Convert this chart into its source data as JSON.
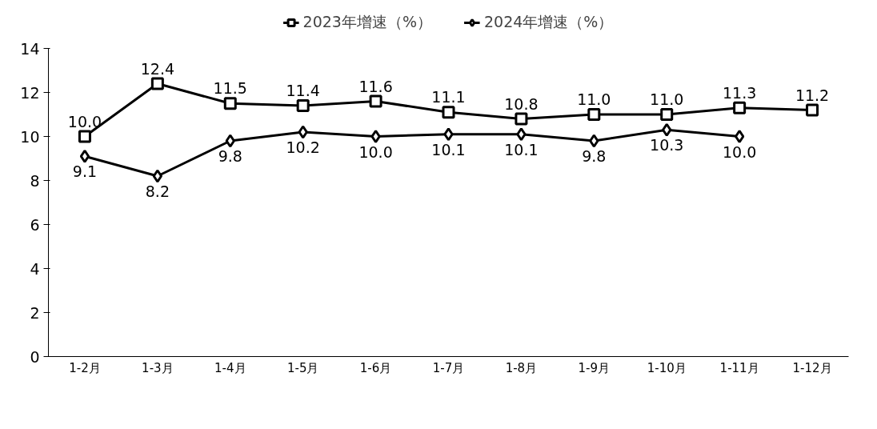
{
  "chart_data": {
    "type": "line",
    "categories": [
      "1-2月",
      "1-3月",
      "1-4月",
      "1-5月",
      "1-6月",
      "1-7月",
      "1-8月",
      "1-9月",
      "1-10月",
      "1-11月",
      "1-12月"
    ],
    "series": [
      {
        "name": "2023年增速（%）",
        "color": "#000000",
        "marker": "square",
        "values": [
          10.0,
          12.4,
          11.5,
          11.4,
          11.6,
          11.1,
          10.8,
          11.0,
          11.0,
          11.3,
          11.2
        ],
        "value_labels": [
          "10.0",
          "12.4",
          "11.5",
          "11.4",
          "11.6",
          "11.1",
          "10.8",
          "11.0",
          "11.0",
          "11.3",
          "11.2"
        ]
      },
      {
        "name": "2024年增速（%）",
        "color": "#000000",
        "marker": "diamond",
        "values": [
          9.1,
          8.2,
          9.8,
          10.2,
          10.0,
          10.1,
          10.1,
          9.8,
          10.3,
          10.0,
          null
        ],
        "value_labels": [
          "9.1",
          "8.2",
          "9.8",
          "10.2",
          "10.0",
          "10.1",
          "10.1",
          "9.8",
          "10.3",
          "10.0",
          null
        ]
      }
    ],
    "ylim": [
      0,
      14
    ],
    "yticks": [
      0,
      2,
      4,
      6,
      8,
      10,
      12,
      14
    ],
    "grid": false,
    "legend": "top",
    "line_style": "solid"
  }
}
